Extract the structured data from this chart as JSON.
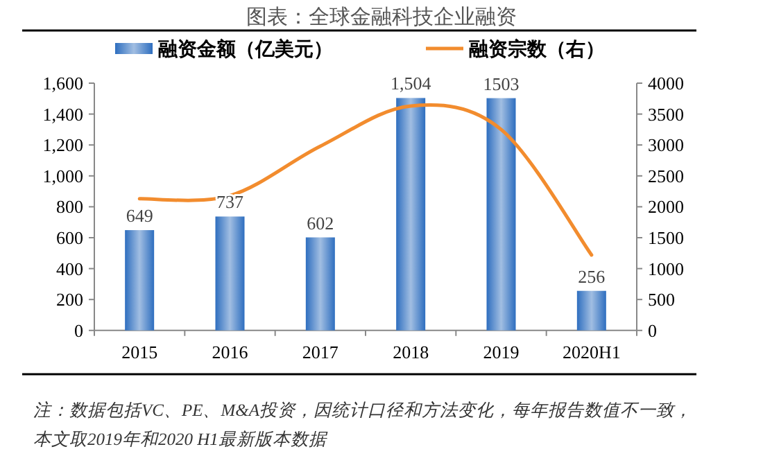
{
  "chart_data": {
    "type": "bar",
    "title": "图表：全球金融科技企业融资",
    "categories": [
      "2015",
      "2016",
      "2017",
      "2018",
      "2019",
      "2020H1"
    ],
    "series": [
      {
        "name": "融资金额（亿美元）",
        "color": "#2e6ebf",
        "values": [
          649,
          737,
          602,
          1504,
          1503,
          256
        ],
        "value_labels": [
          "649",
          "737",
          "602",
          "1,504",
          "1503",
          "256"
        ]
      },
      {
        "name": "融资宗数（右）",
        "type": "line",
        "axis": "y2",
        "color": "#f28c2e",
        "values": [
          2130,
          2180,
          2980,
          3630,
          3250,
          1220
        ]
      }
    ],
    "ylim": [
      0,
      1600
    ],
    "yticks": [
      {
        "value": 0,
        "label": "0"
      },
      {
        "value": 200,
        "label": "200"
      },
      {
        "value": 400,
        "label": "400"
      },
      {
        "value": 600,
        "label": "600"
      },
      {
        "value": 800,
        "label": "800"
      },
      {
        "value": 1000,
        "label": "1,000"
      },
      {
        "value": 1200,
        "label": "1,200"
      },
      {
        "value": 1400,
        "label": "1,400"
      },
      {
        "value": 1600,
        "label": "1,600"
      }
    ],
    "y2lim": [
      0,
      4000
    ],
    "y2ticks": [
      0,
      500,
      1000,
      1500,
      2000,
      2500,
      3000,
      3500,
      4000
    ],
    "legend": "top",
    "grid": false,
    "marker": "none",
    "annotations": [
      "注：数据包括VC、PE、M&A投资，因统计口径和方法变化，每年报告数值不一致，本文取2019年和2020 H1最新版本数据"
    ]
  }
}
